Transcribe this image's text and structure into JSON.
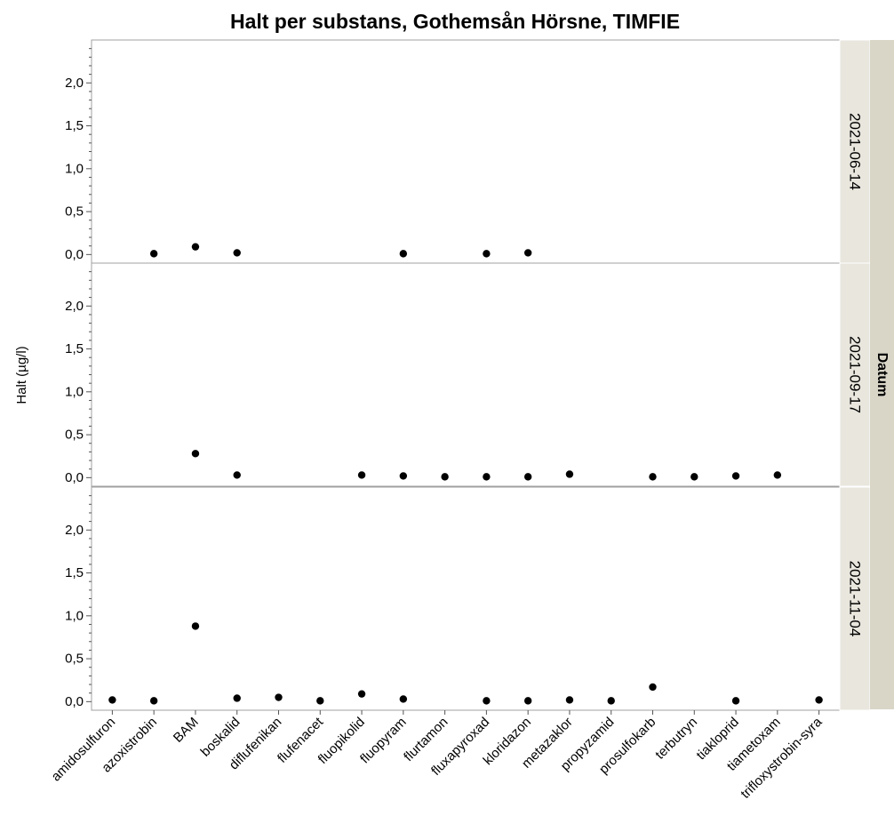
{
  "chart_data": {
    "type": "scatter",
    "title": "Halt per substans, Gothemsån Hörsne, TIMFIE",
    "ylabel": "Halt (µg/l)",
    "xlabel": "",
    "group_label": "Datum",
    "categories": [
      "amidosulfuron",
      "azoxistrobin",
      "BAM",
      "boskalid",
      "diflufenikan",
      "flufenacet",
      "fluopikolid",
      "fluopyram",
      "flurtamon",
      "fluxapyroxad",
      "kloridazon",
      "metazaklor",
      "propyzamid",
      "prosulfokarb",
      "terbutryn",
      "tiakloprid",
      "tiametoxam",
      "trifloxystrobin-syra"
    ],
    "ylim": [
      -0.1,
      2.5
    ],
    "yticks": [
      0.0,
      0.5,
      1.0,
      1.5,
      2.0
    ],
    "ytick_labels": [
      "0,0",
      "0,5",
      "1,0",
      "1,5",
      "2,0"
    ],
    "grid": false,
    "panels": [
      {
        "label": "2021-06-14",
        "points": [
          {
            "category": "azoxistrobin",
            "value": 0.01
          },
          {
            "category": "BAM",
            "value": 0.09
          },
          {
            "category": "boskalid",
            "value": 0.02
          },
          {
            "category": "fluopyram",
            "value": 0.01
          },
          {
            "category": "fluxapyroxad",
            "value": 0.01
          },
          {
            "category": "kloridazon",
            "value": 0.02
          }
        ]
      },
      {
        "label": "2021-09-17",
        "points": [
          {
            "category": "BAM",
            "value": 0.28
          },
          {
            "category": "boskalid",
            "value": 0.03
          },
          {
            "category": "fluopikolid",
            "value": 0.03
          },
          {
            "category": "fluopyram",
            "value": 0.02
          },
          {
            "category": "flurtamon",
            "value": 0.01
          },
          {
            "category": "fluxapyroxad",
            "value": 0.01
          },
          {
            "category": "kloridazon",
            "value": 0.01
          },
          {
            "category": "metazaklor",
            "value": 0.04
          },
          {
            "category": "prosulfokarb",
            "value": 0.01
          },
          {
            "category": "terbutryn",
            "value": 0.01
          },
          {
            "category": "tiakloprid",
            "value": 0.02
          },
          {
            "category": "tiametoxam",
            "value": 0.03
          }
        ]
      },
      {
        "label": "2021-11-04",
        "points": [
          {
            "category": "amidosulfuron",
            "value": 0.02
          },
          {
            "category": "azoxistrobin",
            "value": 0.01
          },
          {
            "category": "BAM",
            "value": 0.88
          },
          {
            "category": "boskalid",
            "value": 0.04
          },
          {
            "category": "diflufenikan",
            "value": 0.05
          },
          {
            "category": "flufenacet",
            "value": 0.01
          },
          {
            "category": "fluopikolid",
            "value": 0.09
          },
          {
            "category": "fluopyram",
            "value": 0.03
          },
          {
            "category": "fluxapyroxad",
            "value": 0.01
          },
          {
            "category": "kloridazon",
            "value": 0.01
          },
          {
            "category": "metazaklor",
            "value": 0.02
          },
          {
            "category": "propyzamid",
            "value": 0.01
          },
          {
            "category": "prosulfokarb",
            "value": 0.17
          },
          {
            "category": "tiakloprid",
            "value": 0.01
          },
          {
            "category": "trifloxystrobin-syra",
            "value": 0.02
          }
        ]
      }
    ],
    "colors": {
      "marker": "#000000",
      "strip_bg": "#e8e6dd",
      "group_bg": "#d9d6c8",
      "frame": "#a0a0a0"
    }
  }
}
